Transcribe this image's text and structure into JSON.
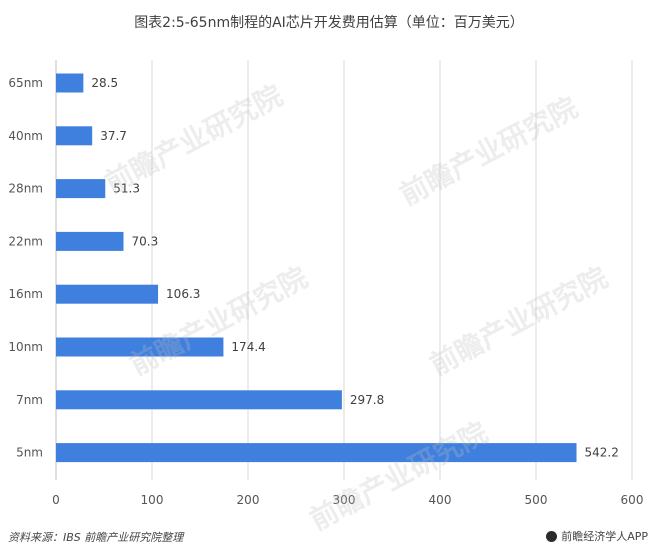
{
  "title": "图表2:5-65nm制程的AI芯片开发费用估算（单位：百万美元）",
  "source": "资料来源：IBS 前瞻产业研究院整理",
  "brand": "前瞻经济学人APP",
  "watermark": "前瞻产业研究院",
  "colors": {
    "bar": "#3f7fde",
    "grid": "#d9d9d9",
    "axis": "#bfbfbf"
  },
  "chart_data": {
    "type": "bar",
    "orientation": "horizontal",
    "categories": [
      "65nm",
      "40nm",
      "28nm",
      "22nm",
      "16nm",
      "10nm",
      "7nm",
      "5nm"
    ],
    "values": [
      28.5,
      37.7,
      51.3,
      70.3,
      106.3,
      174.4,
      297.8,
      542.2
    ],
    "value_labels": [
      "28.5",
      "37.7",
      "51.3",
      "70.3",
      "106.3",
      "174.4",
      "297.8",
      "542.2"
    ],
    "xlim": [
      0,
      600
    ],
    "xticks": [
      0,
      100,
      200,
      300,
      400,
      500,
      600
    ],
    "grid": "vertical",
    "legend": "none"
  }
}
